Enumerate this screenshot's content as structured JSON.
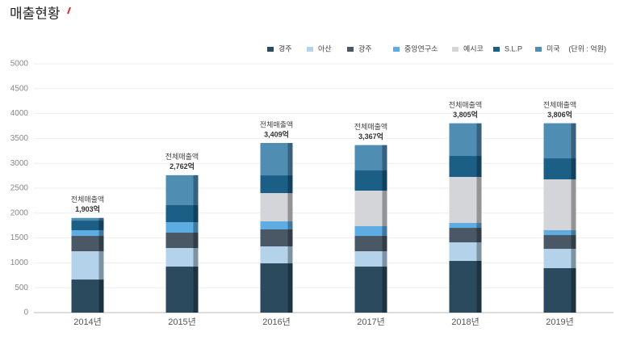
{
  "chart_data": {
    "type": "stacked_bar",
    "title": "매출현황",
    "unit_label": "(단위 : 억원)",
    "categories": [
      "2014년",
      "2015년",
      "2016년",
      "2017년",
      "2018년",
      "2019년"
    ],
    "series": [
      {
        "name": "경주",
        "color": "#2c4a5e",
        "values": [
          665,
          925,
          990,
          925,
          1039,
          893
        ]
      },
      {
        "name": "아산",
        "color": "#b4d2ea",
        "values": [
          568,
          373,
          341,
          308,
          373,
          389
        ]
      },
      {
        "name": "광주",
        "color": "#4a5866",
        "values": [
          309,
          309,
          341,
          309,
          292,
          276
        ]
      },
      {
        "name": "중앙연구소",
        "color": "#5dade2",
        "values": [
          114,
          211,
          162,
          195,
          98,
          98
        ]
      },
      {
        "name": "예시코",
        "color": "#d3d5d8",
        "values": [
          0,
          0,
          568,
          714,
          925,
          1022
        ]
      },
      {
        "name": "S.L.P",
        "color": "#1b5e86",
        "values": [
          194,
          341,
          357,
          406,
          422,
          422
        ]
      },
      {
        "name": "미국",
        "color": "#4f8db3",
        "values": [
          53,
          603,
          650,
          510,
          656,
          706
        ]
      }
    ],
    "total_caption": "전체매출액",
    "totals": [
      1903,
      2762,
      3409,
      3367,
      3805,
      3806
    ],
    "total_value_labels": [
      "1,903억",
      "2,762억",
      "3,409억",
      "3,367억",
      "3,805억",
      "3,806억"
    ],
    "ylim": [
      0,
      5000
    ],
    "yticks": [
      0,
      500,
      1000,
      1500,
      2000,
      2500,
      3000,
      3500,
      4000,
      4500,
      5000
    ],
    "grid": true
  }
}
